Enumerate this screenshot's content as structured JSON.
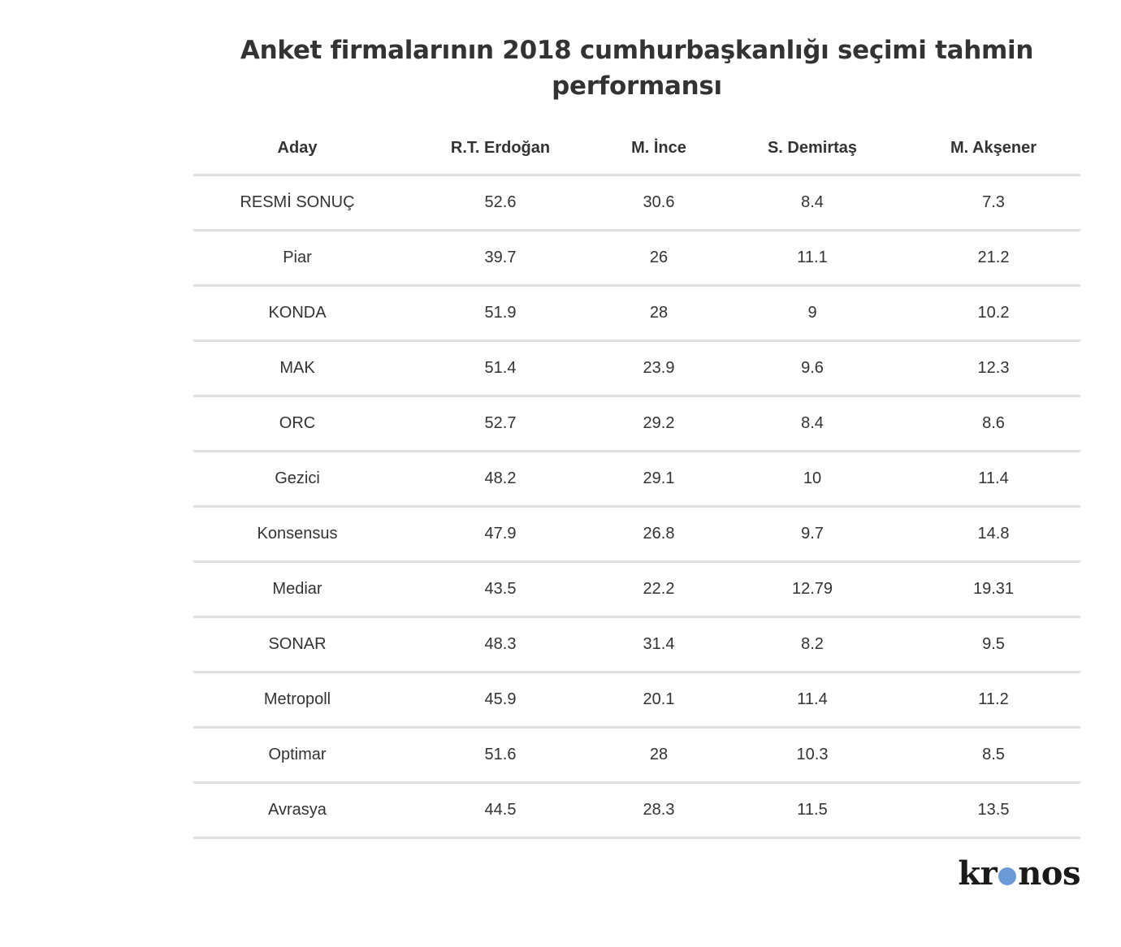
{
  "chart_data": {
    "type": "table",
    "title": "Anket firmalarının 2018 cumhurbaşkanlığı seçimi tahmin performansı",
    "columns": [
      "Aday",
      "R.T. Erdoğan",
      "M. İnce",
      "S. Demirtaş",
      "M. Akşener"
    ],
    "rows": [
      [
        "RESMİ SONUÇ",
        "52.6",
        "30.6",
        "8.4",
        "7.3"
      ],
      [
        "Piar",
        "39.7",
        "26",
        "11.1",
        "21.2"
      ],
      [
        "KONDA",
        "51.9",
        "28",
        "9",
        "10.2"
      ],
      [
        "MAK",
        "51.4",
        "23.9",
        "9.6",
        "12.3"
      ],
      [
        "ORC",
        "52.7",
        "29.2",
        "8.4",
        "8.6"
      ],
      [
        "Gezici",
        "48.2",
        "29.1",
        "10",
        "11.4"
      ],
      [
        "Konsensus",
        "47.9",
        "26.8",
        "9.7",
        "14.8"
      ],
      [
        "Mediar",
        "43.5",
        "22.2",
        "12.79",
        "19.31"
      ],
      [
        "SONAR",
        "48.3",
        "31.4",
        "8.2",
        "9.5"
      ],
      [
        "Metropoll",
        "45.9",
        "20.1",
        "11.4",
        "11.2"
      ],
      [
        "Optimar",
        "51.6",
        "28",
        "10.3",
        "8.5"
      ],
      [
        "Avrasya",
        "44.5",
        "28.3",
        "11.5",
        "13.5"
      ]
    ]
  },
  "logo": {
    "text_before": "kr",
    "text_after": "nos",
    "dot_color": "#6a9ad8"
  }
}
